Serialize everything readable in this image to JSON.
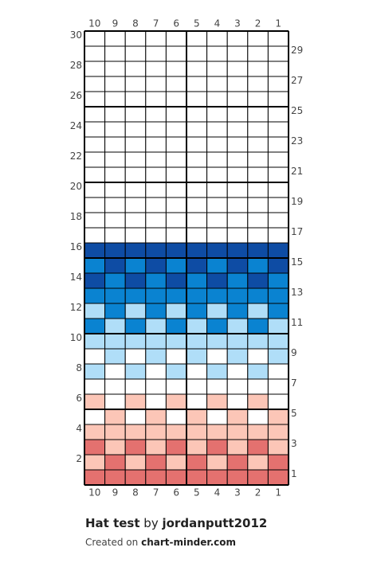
{
  "chart": {
    "title": "Hat test",
    "by": "by",
    "author": "jordanputt2012",
    "created_on": "Created on",
    "site": "chart-minder.com",
    "column_numbers": [
      10,
      9,
      8,
      7,
      6,
      5,
      4,
      3,
      2,
      1
    ],
    "row_numbers": [
      1,
      2,
      3,
      4,
      5,
      6,
      7,
      8,
      9,
      10,
      11,
      12,
      13,
      14,
      15,
      16,
      17,
      18,
      19,
      20,
      21,
      22,
      23,
      24,
      25,
      26,
      27,
      28,
      29,
      30
    ],
    "palette": {
      "R": "#e4716f",
      "P": "#fcc6b7",
      "W": "#ffffff",
      "L": "#b0def8",
      "M": "#0a83d1",
      "D": "#0e4ca4"
    },
    "rows": [
      "RRRRRRRRRR",
      "PRPRPRPRPR",
      "RPRPRPRPRP",
      "PPPPPPPPPP",
      "WPWPWPWPWP",
      "PWPWPWPWPW",
      "WWWWWWWWWW",
      "LWLWLWLWLW",
      "WLWLWLWLWL",
      "LLLLLLLLLL",
      "MLMLMLMLML",
      "LMLMLMLMLM",
      "MMMMMMMMMM",
      "DMDMDMDMDM",
      "MDMDMDMDMD",
      "DDDDDDDDDD",
      "WWWWWWWWWW",
      "WWWWWWWWWW",
      "WWWWWWWWWW",
      "WWWWWWWWWW",
      "WWWWWWWWWW",
      "WWWWWWWWWW",
      "WWWWWWWWWW",
      "WWWWWWWWWW",
      "WWWWWWWWWW",
      "WWWWWWWWWW",
      "WWWWWWWWWW",
      "WWWWWWWWWW",
      "WWWWWWWWWW",
      "WWWWWWWWWW"
    ]
  }
}
